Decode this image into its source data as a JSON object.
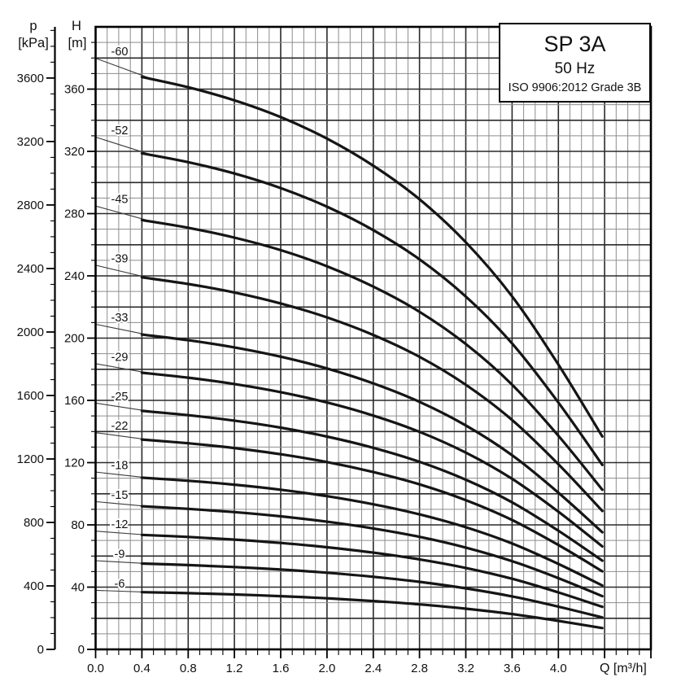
{
  "title_box": {
    "model": "SP 3A",
    "frequency": "50 Hz",
    "standard": "ISO 9906:2012 Grade 3B"
  },
  "axes": {
    "pressure": {
      "symbol": "p",
      "unit": "[kPa]",
      "tick_labels": [
        "0",
        "400",
        "800",
        "1200",
        "1600",
        "2000",
        "2400",
        "2800",
        "3200",
        "3600"
      ],
      "major_step_kpa": 400,
      "minor_step_kpa": 100,
      "minor_max_kpa": 3900
    },
    "head": {
      "symbol": "H",
      "unit": "[m]",
      "tick_labels": [
        "0",
        "40",
        "80",
        "120",
        "160",
        "200",
        "240",
        "280",
        "320",
        "360"
      ],
      "major_step_m": 40,
      "minor_step_m": 10,
      "axis_max_m": 400
    },
    "flow": {
      "label": "Q [m³/h]",
      "tick_labels": [
        "0.0",
        "0.4",
        "0.8",
        "1.2",
        "1.6",
        "2.0",
        "2.4",
        "2.8",
        "3.2",
        "3.6",
        "4.0"
      ],
      "major_step": 0.4,
      "minor_step": 0.1,
      "axis_max": 4.8
    }
  },
  "chart_data": {
    "type": "line",
    "title": "SP 3A",
    "subtitle": "50 Hz",
    "note": "ISO 9906:2012 Grade 3B",
    "xlabel": "Q [m³/h]",
    "ylabel_outer": "p [kPa]",
    "ylabel_inner": "H [m]",
    "x_range": [
      0,
      4.8
    ],
    "y_range_m": [
      0,
      400
    ],
    "p_range_kpa": [
      0,
      3900
    ],
    "grid": {
      "x_major": 0.4,
      "x_minor": 0.1,
      "y_major_m": 20,
      "y_minor_m": 10
    },
    "flow_samples_m3h": [
      0.4,
      0.8,
      1.2,
      1.6,
      2.0,
      2.4,
      2.8,
      3.2,
      3.6,
      4.0,
      4.38
    ],
    "head_per_stage_m": [
      6.13,
      6.02,
      5.88,
      5.7,
      5.47,
      5.18,
      4.82,
      4.36,
      3.78,
      3.05,
      2.28
    ],
    "curves": [
      {
        "label": "-60",
        "stages": 60
      },
      {
        "label": "-52",
        "stages": 52
      },
      {
        "label": "-45",
        "stages": 45
      },
      {
        "label": "-39",
        "stages": 39
      },
      {
        "label": "-33",
        "stages": 33
      },
      {
        "label": "-29",
        "stages": 29
      },
      {
        "label": "-25",
        "stages": 25
      },
      {
        "label": "-22",
        "stages": 22
      },
      {
        "label": "-18",
        "stages": 18
      },
      {
        "label": "-15",
        "stages": 15
      },
      {
        "label": "-12",
        "stages": 12
      },
      {
        "label": "-9",
        "stages": 9
      },
      {
        "label": "-6",
        "stages": 6
      }
    ],
    "leader": {
      "q_start": 0.0,
      "head_per_stage_start": 6.33,
      "q_end": 0.55,
      "head_per_stage_end": 6.08
    },
    "legend_position": "none"
  },
  "colors": {
    "background": "#ffffff",
    "frame": "#000000",
    "grid_major": "#2a2a2a",
    "grid_minor": "#8d8d8d",
    "curve": "#151515",
    "leader": "#3c3c3c",
    "text": "#111111"
  }
}
